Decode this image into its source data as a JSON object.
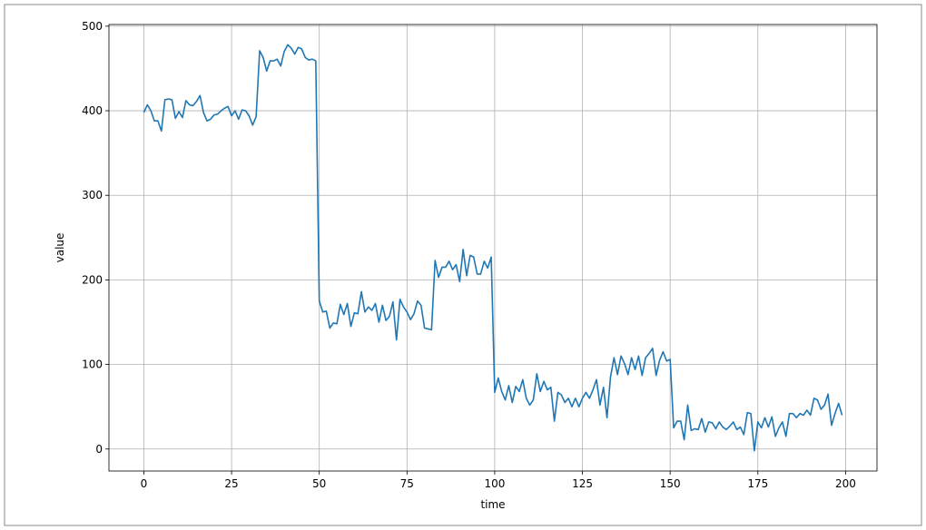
{
  "chart_data": {
    "type": "line",
    "xlabel": "time",
    "ylabel": "value",
    "x": [
      0,
      1,
      2,
      3,
      4,
      5,
      6,
      7,
      8,
      9,
      10,
      11,
      12,
      13,
      14,
      15,
      16,
      17,
      18,
      19,
      20,
      21,
      22,
      23,
      24,
      25,
      26,
      27,
      28,
      29,
      30,
      31,
      32,
      33,
      34,
      35,
      36,
      37,
      38,
      39,
      40,
      41,
      42,
      43,
      44,
      45,
      46,
      47,
      48,
      49,
      50,
      51,
      52,
      53,
      54,
      55,
      56,
      57,
      58,
      59,
      60,
      61,
      62,
      63,
      64,
      65,
      66,
      67,
      68,
      69,
      70,
      71,
      72,
      73,
      74,
      75,
      76,
      77,
      78,
      79,
      80,
      81,
      82,
      83,
      84,
      85,
      86,
      87,
      88,
      89,
      90,
      91,
      92,
      93,
      94,
      95,
      96,
      97,
      98,
      99,
      100,
      101,
      102,
      103,
      104,
      105,
      106,
      107,
      108,
      109,
      110,
      111,
      112,
      113,
      114,
      115,
      116,
      117,
      118,
      119,
      120,
      121,
      122,
      123,
      124,
      125,
      126,
      127,
      128,
      129,
      130,
      131,
      132,
      133,
      134,
      135,
      136,
      137,
      138,
      139,
      140,
      141,
      142,
      143,
      144,
      145,
      146,
      147,
      148,
      149,
      150,
      151,
      152,
      153,
      154,
      155,
      156,
      157,
      158,
      159,
      160,
      161,
      162,
      163,
      164,
      165,
      166,
      167,
      168,
      169,
      170,
      171,
      172,
      173,
      174,
      175,
      176,
      177,
      178,
      179,
      180,
      181,
      182,
      183,
      184,
      185,
      186,
      187,
      188,
      189,
      190,
      191,
      192,
      193,
      194,
      195,
      196,
      197,
      198,
      199
    ],
    "values": [
      398,
      407,
      400,
      388,
      388,
      376,
      413,
      414,
      413,
      391,
      399,
      392,
      412,
      407,
      406,
      411,
      418,
      398,
      388,
      390,
      395,
      396,
      400,
      403,
      405,
      394,
      400,
      390,
      401,
      400,
      394,
      383,
      393,
      471,
      463,
      447,
      459,
      459,
      461,
      453,
      470,
      478,
      474,
      467,
      475,
      473,
      463,
      460,
      461,
      459,
      175,
      162,
      163,
      143,
      149,
      148,
      171,
      159,
      172,
      145,
      161,
      160,
      186,
      162,
      168,
      164,
      172,
      150,
      170,
      152,
      157,
      174,
      129,
      177,
      168,
      162,
      153,
      160,
      175,
      170,
      143,
      142,
      141,
      223,
      203,
      215,
      215,
      222,
      212,
      218,
      198,
      236,
      205,
      229,
      227,
      207,
      207,
      222,
      214,
      227,
      67,
      84,
      68,
      58,
      75,
      55,
      74,
      68,
      82,
      60,
      52,
      58,
      89,
      68,
      80,
      70,
      73,
      33,
      67,
      64,
      55,
      60,
      50,
      60,
      50,
      60,
      67,
      60,
      70,
      82,
      52,
      73,
      37,
      85,
      108,
      88,
      110,
      101,
      88,
      108,
      94,
      110,
      87,
      108,
      113,
      119,
      87,
      105,
      115,
      104,
      106,
      25,
      33,
      33,
      11,
      52,
      22,
      24,
      23,
      36,
      20,
      32,
      31,
      24,
      32,
      26,
      23,
      27,
      32,
      23,
      26,
      17,
      43,
      42,
      -2,
      32,
      25,
      37,
      26,
      38,
      15,
      25,
      32,
      15,
      42,
      42,
      37,
      42,
      40,
      46,
      40,
      60,
      58,
      47,
      52,
      65,
      28,
      42,
      54,
      40
    ],
    "color": "#1f77b4",
    "xlim": [
      -9.95,
      208.95
    ],
    "ylim": [
      -26,
      502
    ],
    "xticks": [
      0,
      25,
      50,
      75,
      100,
      125,
      150,
      175,
      200
    ],
    "yticks": [
      0,
      100,
      200,
      300,
      400,
      500
    ],
    "grid": true
  }
}
